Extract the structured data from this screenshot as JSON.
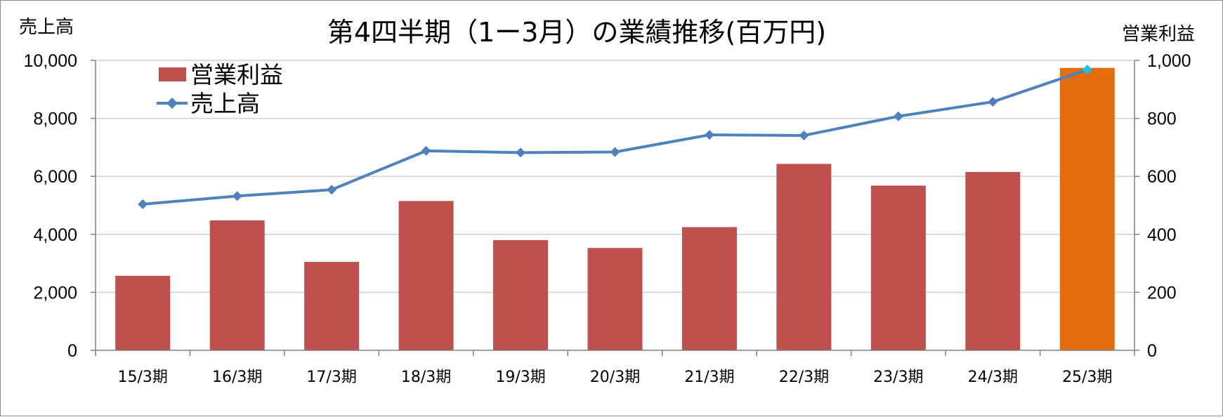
{
  "chart_data": {
    "type": "bar",
    "title": "第4四半期（1ー3月）の業績推移(百万円)",
    "left_axis_title": "売上高",
    "right_axis_title": "営業利益",
    "categories": [
      "15/3期",
      "16/3期",
      "17/3期",
      "18/3期",
      "19/3期",
      "20/3期",
      "21/3期",
      "22/3期",
      "23/3期",
      "24/3期",
      "25/3期"
    ],
    "left_axis": {
      "min": 0,
      "max": 10000,
      "ticks": [
        "0",
        "2,000",
        "4,000",
        "6,000",
        "8,000",
        "10,000"
      ]
    },
    "right_axis": {
      "min": 0,
      "max": 1000,
      "ticks": [
        "0",
        "200",
        "400",
        "600",
        "800",
        "1,000"
      ]
    },
    "grid": true,
    "legend_position": "top-left",
    "series": [
      {
        "name": "営業利益",
        "type": "bar",
        "axis": "right",
        "color": "#c0504d",
        "highlight_color": "#e46c0a",
        "highlight_index": 10,
        "values": [
          257,
          448,
          305,
          515,
          380,
          353,
          425,
          643,
          568,
          615,
          974
        ]
      },
      {
        "name": "売上高",
        "type": "line",
        "axis": "left",
        "color": "#4f81bd",
        "marker": "diamond",
        "values": [
          5040,
          5320,
          5540,
          6880,
          6820,
          6840,
          7430,
          7410,
          8070,
          8570,
          9680
        ]
      }
    ]
  }
}
